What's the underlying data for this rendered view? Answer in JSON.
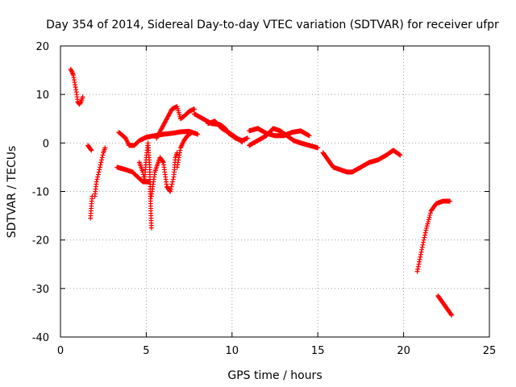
{
  "chart_data": {
    "type": "scatter",
    "title": "Day 354 of 2014, Sidereal Day-to-day VTEC variation (SDTVAR) for receiver ufpr",
    "xlabel": "GPS time / hours",
    "ylabel": "SDTVAR / TECUs",
    "xlim": [
      0,
      25
    ],
    "ylim": [
      -40,
      20
    ],
    "x_ticks": [
      "0",
      "5",
      "10",
      "15",
      "20",
      "25"
    ],
    "y_ticks": [
      "20",
      "10",
      "0",
      "-10",
      "-20",
      "-30",
      "-40"
    ],
    "grid": true,
    "marker": "+",
    "color": "#ff0000",
    "series": [
      {
        "name": "SDTVAR",
        "segments": [
          [
            [
              0.6,
              15.2
            ],
            [
              0.75,
              14
            ],
            [
              0.85,
              12
            ],
            [
              0.95,
              10
            ],
            [
              1.0,
              8.5
            ],
            [
              1.1,
              8
            ],
            [
              1.2,
              8.5
            ],
            [
              1.3,
              9.5
            ]
          ],
          [
            [
              1.6,
              -0.5
            ],
            [
              1.7,
              -1
            ],
            [
              1.8,
              -1.5
            ]
          ],
          [
            [
              1.75,
              -15.5
            ],
            [
              1.8,
              -13
            ],
            [
              1.85,
              -11
            ]
          ],
          [
            [
              2.0,
              -11
            ],
            [
              2.1,
              -8
            ],
            [
              2.3,
              -5
            ],
            [
              2.5,
              -2
            ],
            [
              2.6,
              -1
            ]
          ],
          [
            [
              3.3,
              -5
            ],
            [
              3.8,
              -5.5
            ],
            [
              4.2,
              -6
            ],
            [
              4.5,
              -7
            ],
            [
              4.8,
              -8
            ],
            [
              5.2,
              -8
            ]
          ],
          [
            [
              3.4,
              2.2
            ],
            [
              3.8,
              1
            ],
            [
              4.0,
              -0.5
            ],
            [
              4.3,
              -0.5
            ],
            [
              4.6,
              0.5
            ],
            [
              5.0,
              1.2
            ],
            [
              5.5,
              1.5
            ],
            [
              6.0,
              1.8
            ],
            [
              6.5,
              2
            ],
            [
              7.0,
              2.3
            ],
            [
              7.5,
              2.4
            ],
            [
              8.0,
              1.8
            ]
          ],
          [
            [
              4.6,
              -4
            ],
            [
              4.8,
              -6
            ],
            [
              4.9,
              -8
            ],
            [
              5.0,
              -3
            ],
            [
              5.1,
              0
            ],
            [
              5.2,
              -5
            ],
            [
              5.25,
              -12
            ],
            [
              5.3,
              -17.5
            ]
          ],
          [
            [
              5.3,
              -11
            ],
            [
              5.5,
              -6
            ],
            [
              5.8,
              -3
            ],
            [
              6.0,
              -4
            ],
            [
              6.2,
              -9
            ],
            [
              6.4,
              -10
            ],
            [
              6.6,
              -7
            ],
            [
              6.7,
              -3
            ],
            [
              6.8,
              -2
            ]
          ],
          [
            [
              5.6,
              1
            ],
            [
              5.9,
              3
            ],
            [
              6.2,
              5
            ],
            [
              6.5,
              7
            ],
            [
              6.8,
              7.5
            ],
            [
              7.0,
              5
            ],
            [
              7.2,
              5.5
            ],
            [
              7.5,
              6.5
            ],
            [
              7.8,
              7
            ]
          ],
          [
            [
              6.8,
              -5
            ],
            [
              7.0,
              -1
            ],
            [
              7.2,
              0.5
            ],
            [
              7.4,
              1.5
            ],
            [
              7.6,
              2
            ]
          ],
          [
            [
              7.8,
              6
            ],
            [
              8.3,
              5
            ],
            [
              8.8,
              4
            ],
            [
              9.3,
              3.8
            ],
            [
              9.6,
              3
            ],
            [
              9.8,
              2
            ],
            [
              10.2,
              1
            ],
            [
              10.6,
              0.5
            ],
            [
              10.9,
              1
            ]
          ],
          [
            [
              8.6,
              4
            ],
            [
              9.0,
              4.5
            ],
            [
              9.4,
              3
            ],
            [
              9.8,
              2.2
            ],
            [
              10.2,
              1.2
            ],
            [
              10.6,
              0.2
            ]
          ],
          [
            [
              11.0,
              2.5
            ],
            [
              11.5,
              3
            ],
            [
              12.0,
              2
            ],
            [
              12.5,
              1.5
            ],
            [
              13.0,
              1.5
            ],
            [
              13.5,
              2.2
            ],
            [
              14.0,
              2.5
            ],
            [
              14.5,
              1.5
            ]
          ],
          [
            [
              11.0,
              -0.5
            ],
            [
              11.5,
              0.5
            ],
            [
              12.0,
              1.5
            ],
            [
              12.4,
              3
            ],
            [
              12.8,
              2.5
            ],
            [
              13.2,
              1.5
            ],
            [
              13.6,
              0.5
            ],
            [
              14.0,
              0
            ],
            [
              14.5,
              -0.5
            ],
            [
              15.0,
              -1
            ]
          ],
          [
            [
              15.3,
              -2
            ],
            [
              15.6,
              -3.5
            ],
            [
              15.9,
              -5
            ],
            [
              16.3,
              -5.5
            ],
            [
              16.7,
              -6
            ],
            [
              17.0,
              -6
            ],
            [
              17.5,
              -5
            ],
            [
              18.0,
              -4
            ],
            [
              18.5,
              -3.5
            ],
            [
              19.0,
              -2.5
            ],
            [
              19.4,
              -1.5
            ],
            [
              19.8,
              -2.5
            ]
          ],
          [
            [
              20.8,
              -26.5
            ],
            [
              21.0,
              -23
            ],
            [
              21.3,
              -18
            ],
            [
              21.6,
              -14
            ],
            [
              21.9,
              -12.5
            ],
            [
              22.3,
              -12
            ],
            [
              22.7,
              -12
            ]
          ],
          [
            [
              22.0,
              -31.5
            ],
            [
              22.3,
              -33
            ],
            [
              22.6,
              -34.5
            ],
            [
              22.8,
              -35.5
            ]
          ]
        ]
      }
    ]
  }
}
